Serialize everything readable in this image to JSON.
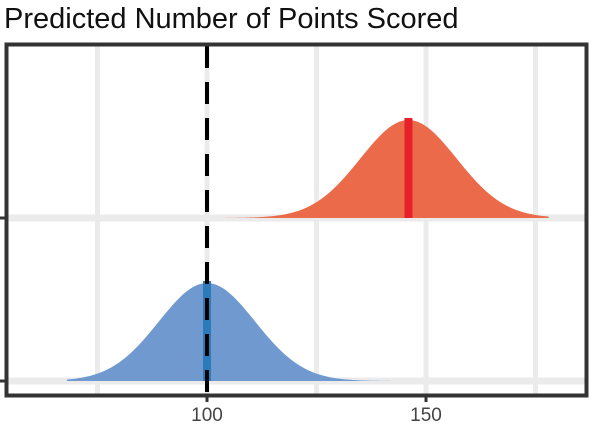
{
  "chart_data": {
    "type": "area",
    "title": "Predicted Number of Points Scored",
    "xlabel": "",
    "ylabel": "",
    "xlim": [
      60,
      185
    ],
    "x_gridlines": [
      75,
      100,
      125,
      150,
      175
    ],
    "x_tick_labels": [
      {
        "value": 100,
        "label": "100"
      },
      {
        "value": 150,
        "label": "150"
      }
    ],
    "reference_line": {
      "x": 100,
      "style": "dashed",
      "color": "#000000"
    },
    "grid": true,
    "legend": "none",
    "series": [
      {
        "color": "#ea6a4a",
        "marker_color": "#e8202a",
        "mean": 146,
        "sd": 11,
        "x_range": [
          68,
          178
        ]
      },
      {
        "color": "#6f99cf",
        "marker_color": "#2b7bba",
        "mean": 100,
        "sd": 11,
        "x_range": [
          68,
          178
        ]
      }
    ]
  }
}
